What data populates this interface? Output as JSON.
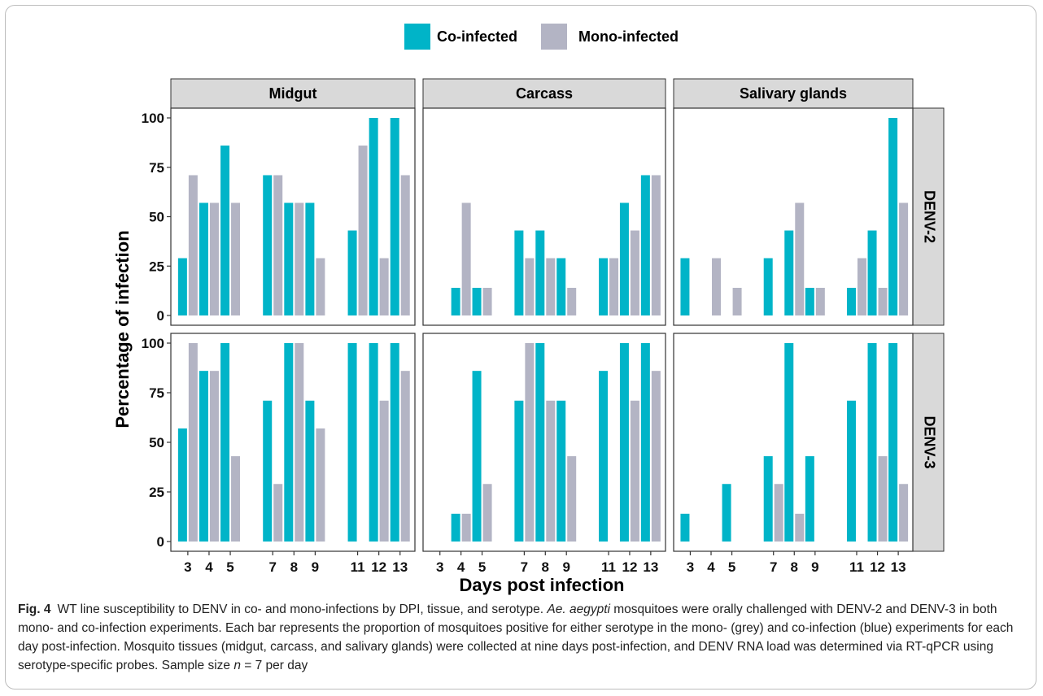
{
  "chart_data": {
    "type": "bar",
    "legend": {
      "position": "top-center",
      "items": [
        {
          "name": "Co-infected",
          "color": "#00B4C8"
        },
        {
          "name": "Mono-infected",
          "color": "#B3B4C4"
        }
      ]
    },
    "xlabel": "Days post infection",
    "ylabel": "Percentage of infection",
    "ylim": [
      0,
      100
    ],
    "yticks": [
      0,
      25,
      50,
      75,
      100
    ],
    "x_ticks": [
      3,
      4,
      5,
      7,
      8,
      9,
      11,
      12,
      13
    ],
    "columns": [
      "Midgut",
      "Carcass",
      "Salivary glands"
    ],
    "rows": [
      "DENV-2",
      "DENV-3"
    ],
    "series_names": [
      "Co-infected",
      "Mono-infected"
    ],
    "panels": [
      {
        "row": "DENV-2",
        "column": "Midgut",
        "co": [
          29,
          57,
          86,
          71,
          57,
          57,
          43,
          100,
          100
        ],
        "mono": [
          71,
          57,
          57,
          71,
          57,
          29,
          86,
          29,
          71
        ]
      },
      {
        "row": "DENV-2",
        "column": "Carcass",
        "co": [
          0,
          14,
          14,
          43,
          43,
          29,
          29,
          57,
          71
        ],
        "mono": [
          0,
          57,
          14,
          29,
          29,
          14,
          29,
          43,
          71
        ]
      },
      {
        "row": "DENV-2",
        "column": "Salivary glands",
        "co": [
          29,
          0,
          0,
          29,
          43,
          14,
          14,
          43,
          100
        ],
        "mono": [
          0,
          29,
          14,
          0,
          57,
          14,
          29,
          14,
          57
        ]
      },
      {
        "row": "DENV-3",
        "column": "Midgut",
        "co": [
          57,
          86,
          100,
          71,
          100,
          71,
          100,
          100,
          100
        ],
        "mono": [
          100,
          86,
          43,
          29,
          100,
          57,
          0,
          71,
          86
        ]
      },
      {
        "row": "DENV-3",
        "column": "Carcass",
        "co": [
          0,
          14,
          86,
          71,
          100,
          71,
          86,
          100,
          100
        ],
        "mono": [
          0,
          14,
          29,
          100,
          71,
          43,
          0,
          71,
          86
        ]
      },
      {
        "row": "DENV-3",
        "column": "Salivary glands",
        "co": [
          14,
          0,
          29,
          43,
          100,
          43,
          71,
          100,
          100
        ],
        "mono": [
          0,
          0,
          0,
          29,
          14,
          0,
          0,
          43,
          29
        ]
      }
    ]
  },
  "caption": {
    "fig_label": "Fig. 4",
    "part1": "WT line susceptibility to DENV in co- and mono-infections by DPI, tissue, and serotype. ",
    "species": "Ae. aegypti",
    "part2": " mosquitoes were orally challenged with DENV-2 and DENV-3 in both mono- and co-infection experiments. Each bar represents the proportion of mosquitoes positive for either serotype in the mono- (grey) and co-infection (blue) experiments for each day post-infection. Mosquito tissues (midgut, carcass, and salivary glands) were collected at nine days post-infection, and DENV RNA load was determined via RT-qPCR using serotype-specific probes. Sample size ",
    "n_symbol": "n",
    "part3": " = 7 per day"
  }
}
